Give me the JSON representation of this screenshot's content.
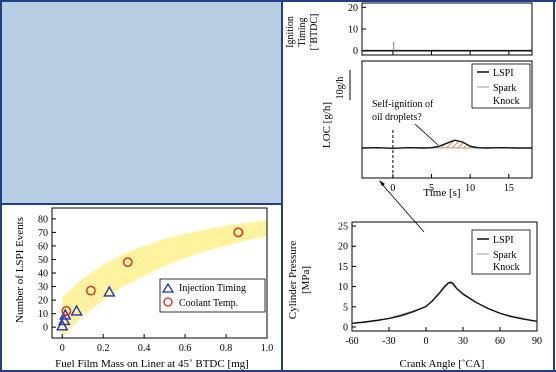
{
  "theme": {
    "panel_bg": "#b7cde3",
    "panel_border": "#1f3f86",
    "band_color": "#fff3a0",
    "injection_marker_color": "#1f2fbf",
    "coolant_marker_color": "#e0251b",
    "hatch_color": "#e0701b",
    "line_color": "#111111",
    "spark_line_color": "#9a9a9a"
  },
  "chart_data": [
    {
      "id": "lspi-vs-fuel-film",
      "type": "scatter",
      "xlabel": "Fuel Film Mass on Liner at 45˚ BTDC [mg]",
      "ylabel": "Number of LSPI Events",
      "xlim": [
        -0.05,
        1.0
      ],
      "ylim": [
        -8,
        88
      ],
      "xticks": [
        "0",
        "0.2",
        "0.4",
        "0.6",
        "0.8",
        "1.0"
      ],
      "xtick_values": [
        0,
        0.2,
        0.4,
        0.6,
        0.8,
        1.0
      ],
      "yticks": [
        "0",
        "10",
        "20",
        "30",
        "40",
        "50",
        "60",
        "70",
        "80"
      ],
      "ytick_values": [
        0,
        10,
        20,
        30,
        40,
        50,
        60,
        70,
        80
      ],
      "band": {
        "x": [
          0,
          0.1,
          0.2,
          0.3,
          0.4,
          0.5,
          0.6,
          0.7,
          0.8,
          0.9,
          1.0
        ],
        "lower": [
          -8,
          8,
          20,
          30,
          38,
          45,
          51,
          56,
          60,
          64,
          67
        ],
        "upper": [
          22,
          36,
          46,
          54,
          60,
          65,
          69,
          72,
          75,
          77,
          79
        ]
      },
      "series": [
        {
          "name": "Injection Timing",
          "marker": "triangle",
          "x": [
            0.0,
            0.01,
            0.015,
            0.07,
            0.23
          ],
          "y": [
            1,
            5,
            9,
            12,
            26
          ]
        },
        {
          "name": "Coolant Temp.",
          "marker": "circle",
          "x": [
            0.02,
            0.14,
            0.32,
            0.86
          ],
          "y": [
            12,
            27,
            48,
            70
          ]
        }
      ],
      "legend_position": "bottom-right"
    },
    {
      "id": "ignition-timing",
      "type": "line",
      "ylabel_lines": [
        "Ignition",
        "Timing",
        "[˚BTDC]"
      ],
      "xlim": [
        -4,
        18
      ],
      "ylim": [
        -2,
        22
      ],
      "yticks": [
        "0",
        "10",
        "20"
      ],
      "ytick_values": [
        0,
        10,
        20
      ],
      "series": [
        {
          "x": [
            -4,
            18
          ],
          "y": [
            0,
            0
          ]
        }
      ],
      "spike": {
        "x": 0.1,
        "y": [
          0,
          4
        ]
      }
    },
    {
      "id": "loc-trace",
      "type": "line",
      "ylabel": "LOC [g/h]",
      "scalebar_label": "10g/h",
      "xlabel": "Time [s]",
      "xlim": [
        -4,
        18
      ],
      "xticks": [
        "0",
        "5",
        "10",
        "15"
      ],
      "xtick_values": [
        0,
        5,
        10,
        15
      ],
      "annotation_lines": [
        "Self-ignition of",
        "oil droplets?"
      ],
      "event_time": 0,
      "series": [
        {
          "name": "LSPI",
          "x": [
            -4,
            -2,
            0,
            2,
            4,
            5,
            6,
            7,
            8,
            9,
            10,
            11,
            12,
            14,
            16,
            18
          ],
          "y": [
            0,
            0.1,
            -0.1,
            0.1,
            0,
            0.1,
            0.6,
            1.6,
            2.6,
            2.0,
            0.6,
            0.1,
            0,
            0.1,
            0,
            0
          ]
        },
        {
          "name": "Spark Knock",
          "x": [
            -4,
            0,
            5,
            10,
            14,
            18
          ],
          "y": [
            0.05,
            0,
            0.05,
            0,
            0.05,
            0
          ]
        }
      ],
      "hatch_range": [
        5,
        11
      ],
      "legend_position": "top-right"
    },
    {
      "id": "cylinder-pressure",
      "type": "line",
      "ylabel_lines": [
        "Cylinder Pressure",
        "[MPa]"
      ],
      "xlabel": "Crank Angle [˚CA]",
      "xlim": [
        -60,
        90
      ],
      "ylim": [
        -1,
        26
      ],
      "xticks": [
        "-60",
        "-30",
        "0",
        "30",
        "60",
        "90"
      ],
      "xtick_values": [
        -60,
        -30,
        0,
        30,
        60,
        90
      ],
      "yticks": [
        "0",
        "5",
        "10",
        "15",
        "20",
        "25"
      ],
      "ytick_values": [
        0,
        5,
        10,
        15,
        20,
        25
      ],
      "series": [
        {
          "name": "LSPI",
          "x": [
            -60,
            -50,
            -40,
            -30,
            -20,
            -10,
            0,
            5,
            10,
            15,
            18,
            20,
            22,
            25,
            30,
            40,
            50,
            60,
            70,
            80,
            90
          ],
          "y": [
            0.9,
            1.2,
            1.6,
            2.1,
            2.8,
            3.8,
            5.1,
            6.4,
            8.1,
            10.0,
            10.9,
            11.1,
            10.8,
            9.5,
            8.2,
            6.2,
            4.6,
            3.4,
            2.5,
            1.9,
            1.4
          ]
        },
        {
          "name": "Spark Knock",
          "x": [
            -60,
            -30,
            0,
            10,
            18,
            20,
            25,
            30,
            40,
            60,
            90
          ],
          "y": [
            0.9,
            2.1,
            5.0,
            8.0,
            10.7,
            10.9,
            9.4,
            8.0,
            6.1,
            3.3,
            1.4
          ]
        }
      ],
      "legend_position": "top-right"
    }
  ]
}
